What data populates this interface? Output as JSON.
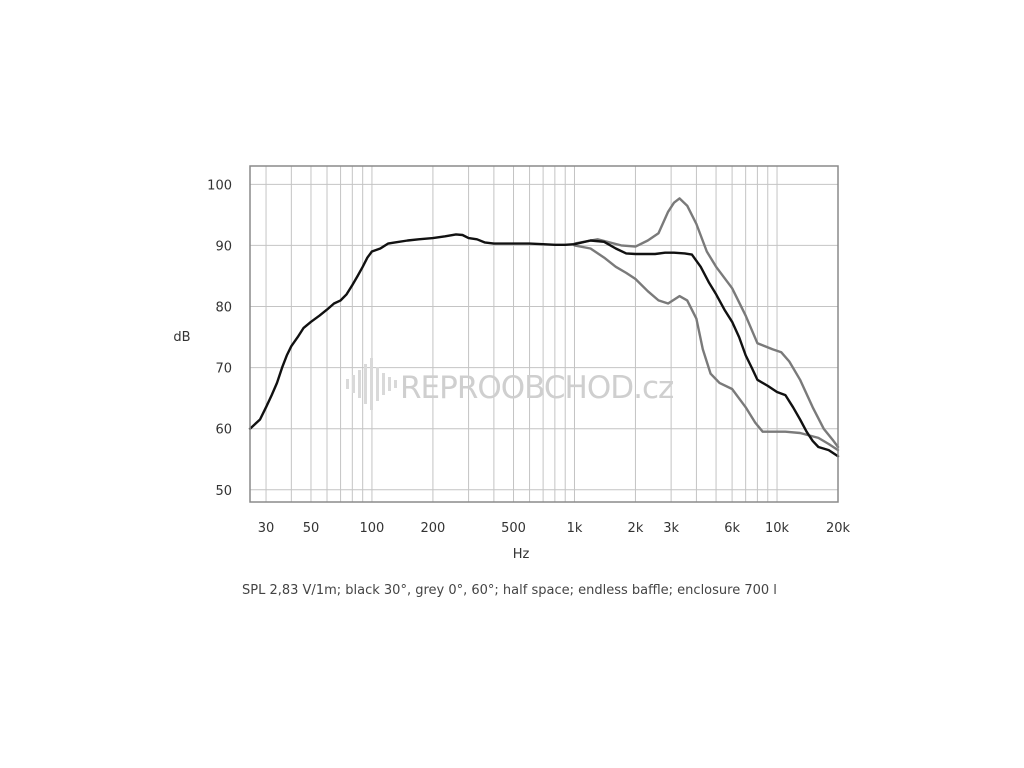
{
  "chart_data": {
    "type": "line",
    "ylabel": "dB",
    "xlabel": "Hz",
    "x_scale": "log",
    "xlim": [
      25,
      20000
    ],
    "ylim": [
      48,
      103
    ],
    "grid": true,
    "y_ticks": [
      50,
      60,
      70,
      80,
      90,
      100
    ],
    "x_tick_labels": [
      {
        "value": 30,
        "label": "30"
      },
      {
        "value": 50,
        "label": "50"
      },
      {
        "value": 100,
        "label": "100"
      },
      {
        "value": 200,
        "label": "200"
      },
      {
        "value": 500,
        "label": "500"
      },
      {
        "value": 1000,
        "label": "1k"
      },
      {
        "value": 2000,
        "label": "2k"
      },
      {
        "value": 3000,
        "label": "3k"
      },
      {
        "value": 6000,
        "label": "6k"
      },
      {
        "value": 10000,
        "label": "10k"
      },
      {
        "value": 20000,
        "label": "20k"
      }
    ],
    "series": [
      {
        "color": "#7a7a7a",
        "x": [
          1000,
          1300,
          1700,
          2000,
          2300,
          2600,
          2900,
          3100,
          3300,
          3600,
          4000,
          4500,
          5000,
          6000,
          7000,
          8000,
          9500,
          10500,
          11500,
          13000,
          15000,
          17000,
          19000,
          20000
        ],
        "y": [
          90.3,
          91.0,
          90.0,
          89.8,
          90.8,
          92.0,
          95.5,
          97.0,
          97.7,
          96.5,
          93.5,
          89.0,
          86.5,
          83.0,
          78.5,
          74.0,
          73.0,
          72.5,
          71.0,
          68.0,
          63.5,
          60.0,
          58.0,
          57.0
        ]
      },
      {
        "color": "#7a7a7a",
        "x": [
          1000,
          1200,
          1400,
          1600,
          1800,
          2000,
          2300,
          2600,
          2900,
          3300,
          3600,
          4000,
          4300,
          4700,
          5200,
          6000,
          7000,
          7800,
          8500,
          9500,
          11000,
          13000,
          16000,
          18000,
          20000
        ],
        "y": [
          90.0,
          89.5,
          88.0,
          86.5,
          85.5,
          84.5,
          82.5,
          81.0,
          80.5,
          81.7,
          81.0,
          78.0,
          73.0,
          69.0,
          67.5,
          66.5,
          63.5,
          61.0,
          59.5,
          59.5,
          59.5,
          59.3,
          58.5,
          57.5,
          56.5
        ]
      },
      {
        "color": "#111111",
        "x": [
          25,
          26,
          28,
          30,
          32,
          34,
          36,
          38,
          40,
          43,
          46,
          50,
          55,
          60,
          65,
          70,
          75,
          80,
          85,
          90,
          95,
          100,
          110,
          120,
          130,
          150,
          170,
          200,
          230,
          260,
          280,
          300,
          330,
          360,
          400,
          500,
          600,
          700,
          800,
          900,
          1000,
          1200,
          1400,
          1600,
          1800,
          2000,
          2200,
          2500,
          2800,
          3100,
          3500,
          3800,
          4200,
          4600,
          5000,
          5500,
          6000,
          6500,
          7000,
          7500,
          8000,
          9000,
          10000,
          11000,
          12000,
          13000,
          14000,
          15000,
          16000,
          18000,
          20000
        ],
        "y": [
          60.0,
          60.5,
          61.5,
          63.5,
          65.5,
          67.5,
          70.0,
          72.0,
          73.5,
          75.0,
          76.5,
          77.5,
          78.5,
          79.5,
          80.5,
          81.0,
          82.0,
          83.5,
          85.0,
          86.5,
          88.0,
          89.0,
          89.5,
          90.3,
          90.5,
          90.8,
          91.0,
          91.2,
          91.5,
          91.8,
          91.7,
          91.2,
          91.0,
          90.5,
          90.3,
          90.3,
          90.3,
          90.2,
          90.1,
          90.1,
          90.2,
          90.8,
          90.6,
          89.5,
          88.7,
          88.6,
          88.6,
          88.6,
          88.8,
          88.8,
          88.7,
          88.5,
          86.5,
          84.0,
          82.0,
          79.5,
          77.5,
          75.0,
          72.0,
          70.0,
          68.0,
          67.0,
          66.0,
          65.5,
          63.5,
          61.5,
          59.5,
          58.0,
          57.0,
          56.5,
          55.5
        ]
      }
    ],
    "caption": "SPL 2,83 V/1m; black 30°, grey 0°, 60°; half space; endless baffle; enclosure 700 l"
  },
  "watermark": {
    "brand": "REPROOBCHOD",
    "suffix": ".cz",
    "color": "#cfcfcf"
  }
}
